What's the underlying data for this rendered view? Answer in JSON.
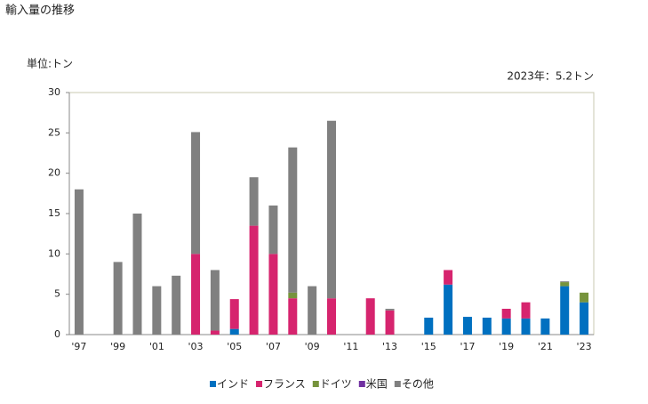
{
  "chart_data": {
    "type": "stacked-bar",
    "title": "輸入量の推移",
    "y_label": "単位:トン",
    "annotation": "2023年：5.2トン",
    "categories": [
      "'97",
      null,
      "'99",
      null,
      "'01",
      null,
      "'03",
      null,
      "'05",
      null,
      "'07",
      null,
      "'09",
      null,
      "'11",
      null,
      "'13",
      null,
      "'15",
      null,
      "'17",
      null,
      "'19",
      null,
      "'21",
      null,
      "'23"
    ],
    "series": [
      {
        "name": "インド",
        "color": "#0070c0",
        "values": [
          0,
          0,
          0,
          0,
          0,
          0,
          0,
          0,
          0.7,
          0,
          0,
          0,
          0,
          0,
          0,
          0,
          0,
          0,
          2.1,
          6.2,
          2.2,
          2.1,
          2,
          2,
          2,
          6,
          4
        ]
      },
      {
        "name": "フランス",
        "color": "#d6246e",
        "values": [
          0,
          0,
          0,
          0,
          0,
          0,
          10,
          0.5,
          3.7,
          13.5,
          10,
          4.5,
          0,
          4.5,
          0,
          4.5,
          3,
          0,
          0,
          1.8,
          0,
          0,
          1.2,
          2,
          0,
          0,
          0
        ]
      },
      {
        "name": "ドイツ",
        "color": "#76933c",
        "values": [
          0,
          0,
          0,
          0,
          0,
          0,
          0,
          0,
          0,
          0,
          0,
          0.7,
          0,
          0,
          0,
          0,
          0,
          0,
          0,
          0,
          0,
          0,
          0,
          0,
          0,
          0.5,
          1.2
        ]
      },
      {
        "name": "米国",
        "color": "#7030a0",
        "values": [
          0,
          0,
          0,
          0,
          0,
          0,
          0,
          0,
          0,
          0,
          0,
          0,
          0,
          0,
          0,
          0,
          0,
          0,
          0,
          0,
          0,
          0,
          0,
          0,
          0,
          0,
          0
        ]
      },
      {
        "name": "その他",
        "color": "#808080",
        "values": [
          18,
          0,
          9,
          15,
          6,
          7.3,
          15.1,
          7.5,
          0,
          6,
          6,
          18,
          6,
          22,
          0,
          0,
          0.2,
          0,
          0,
          0,
          0,
          0,
          0,
          0,
          0,
          0.1,
          0
        ]
      }
    ],
    "ylim": [
      0,
      30
    ],
    "yticks": [
      0,
      5,
      10,
      15,
      20,
      25,
      30
    ]
  }
}
